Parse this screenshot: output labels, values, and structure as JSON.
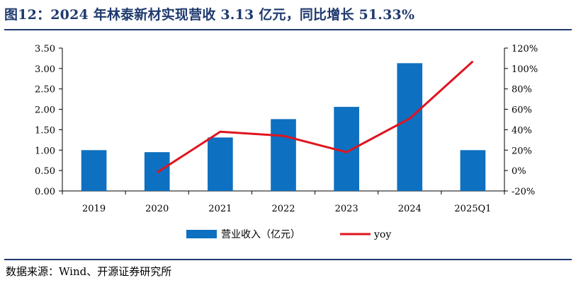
{
  "title": "图12：2024 年林泰新材实现营收 3.13 亿元，同比增长 51.33%",
  "source": "数据来源：Wind、开源证券研究所",
  "chart_data": {
    "type": "bar",
    "categories": [
      "2019",
      "2020",
      "2021",
      "2022",
      "2023",
      "2024",
      "2025Q1"
    ],
    "series": [
      {
        "name": "营业收入（亿元）",
        "type": "bar",
        "axis": "left",
        "color": "#0e70c0",
        "values": [
          1.0,
          0.95,
          1.31,
          1.76,
          2.06,
          3.13,
          1.0
        ]
      },
      {
        "name": "yoy",
        "type": "line",
        "axis": "right",
        "color": "#e0141e",
        "values": [
          null,
          -0.02,
          0.38,
          0.34,
          0.18,
          0.51,
          1.07
        ]
      }
    ],
    "y_left": {
      "ylim": [
        0,
        3.5
      ],
      "ticks": [
        "0.00",
        "0.50",
        "1.00",
        "1.50",
        "2.00",
        "2.50",
        "3.00",
        "3.50"
      ]
    },
    "y_right": {
      "ylim": [
        -0.2,
        1.2
      ],
      "ticks": [
        "-20%",
        "0%",
        "20%",
        "40%",
        "60%",
        "80%",
        "100%",
        "120%"
      ]
    },
    "grid": false,
    "legend_position": "bottom"
  }
}
